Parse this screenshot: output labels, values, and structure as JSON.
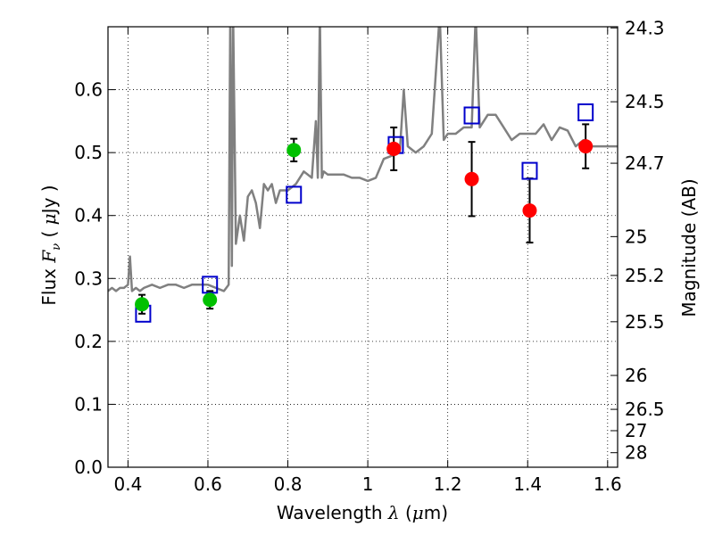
{
  "chart_data": {
    "type": "scatter",
    "xlabel": "Wavelength  λ (μm)",
    "ylabel": "Flux  F_ν  ( μJy )",
    "right_label": "Magnitude (AB)",
    "xlim": [
      0.35,
      1.625
    ],
    "ylim": [
      0.0,
      0.7
    ],
    "x_ticks": [
      "0.4",
      "0.6",
      "0.8",
      "1",
      "1.2",
      "1.4",
      "1.6"
    ],
    "y_ticks": [
      "0.0",
      "0.1",
      "0.2",
      "0.3",
      "0.4",
      "0.5",
      "0.6"
    ],
    "grid": true,
    "right_axis_ticks": [
      {
        "label": "24.3",
        "flux": 0.6982
      },
      {
        "label": "24.5",
        "flux": 0.5808
      },
      {
        "label": "24.7",
        "flux": 0.4831
      },
      {
        "label": "25",
        "flux": 0.3665
      },
      {
        "label": "25.2",
        "flux": 0.3048
      },
      {
        "label": "25.5",
        "flux": 0.2312
      },
      {
        "label": "26",
        "flux": 0.1459
      },
      {
        "label": "26.5",
        "flux": 0.092
      },
      {
        "label": "27",
        "flux": 0.0581
      },
      {
        "label": "28",
        "flux": 0.0231
      }
    ],
    "series": [
      {
        "kind": "model-spectrum",
        "color": "#808080",
        "x": [
          0.35,
          0.36,
          0.37,
          0.38,
          0.39,
          0.4,
          0.405,
          0.41,
          0.42,
          0.43,
          0.44,
          0.46,
          0.48,
          0.5,
          0.52,
          0.54,
          0.56,
          0.58,
          0.6,
          0.62,
          0.64,
          0.652,
          0.656,
          0.66,
          0.663,
          0.67,
          0.68,
          0.69,
          0.7,
          0.71,
          0.72,
          0.73,
          0.74,
          0.75,
          0.76,
          0.77,
          0.78,
          0.8,
          0.82,
          0.84,
          0.86,
          0.87,
          0.875,
          0.88,
          0.885,
          0.89,
          0.9,
          0.92,
          0.94,
          0.96,
          0.98,
          1.0,
          1.02,
          1.04,
          1.06,
          1.08,
          1.09,
          1.1,
          1.12,
          1.14,
          1.16,
          1.18,
          1.19,
          1.2,
          1.22,
          1.24,
          1.26,
          1.27,
          1.28,
          1.3,
          1.32,
          1.34,
          1.36,
          1.38,
          1.4,
          1.42,
          1.44,
          1.46,
          1.48,
          1.5,
          1.52,
          1.54,
          1.56,
          1.58,
          1.6,
          1.625
        ],
        "y": [
          0.28,
          0.285,
          0.28,
          0.285,
          0.285,
          0.29,
          0.335,
          0.28,
          0.285,
          0.28,
          0.285,
          0.29,
          0.285,
          0.29,
          0.29,
          0.285,
          0.29,
          0.29,
          0.29,
          0.285,
          0.28,
          0.29,
          0.72,
          0.32,
          0.72,
          0.355,
          0.4,
          0.36,
          0.43,
          0.44,
          0.42,
          0.38,
          0.45,
          0.44,
          0.45,
          0.42,
          0.44,
          0.44,
          0.45,
          0.47,
          0.46,
          0.55,
          0.46,
          0.72,
          0.46,
          0.47,
          0.465,
          0.465,
          0.465,
          0.46,
          0.46,
          0.455,
          0.46,
          0.49,
          0.495,
          0.5,
          0.6,
          0.51,
          0.5,
          0.51,
          0.53,
          0.72,
          0.52,
          0.53,
          0.53,
          0.54,
          0.54,
          0.72,
          0.54,
          0.56,
          0.56,
          0.54,
          0.52,
          0.53,
          0.53,
          0.53,
          0.545,
          0.52,
          0.54,
          0.535,
          0.51,
          0.52,
          0.51,
          0.51,
          0.51,
          0.51
        ]
      },
      {
        "kind": "points-green",
        "color": "#00c000",
        "x": [
          0.435,
          0.605,
          0.815
        ],
        "y": [
          0.259,
          0.266,
          0.504
        ],
        "err": [
          0.015,
          0.014,
          0.018
        ]
      },
      {
        "kind": "points-red",
        "color": "#ff0000",
        "x": [
          1.065,
          1.26,
          1.405,
          1.545
        ],
        "y": [
          0.506,
          0.458,
          0.408,
          0.51
        ],
        "err": [
          0.034,
          0.059,
          0.051,
          0.035
        ]
      },
      {
        "kind": "open-squares",
        "color": "#0000cc",
        "x": [
          0.438,
          0.605,
          0.815,
          1.07,
          1.26,
          1.405,
          1.545
        ],
        "y": [
          0.244,
          0.29,
          0.433,
          0.512,
          0.559,
          0.471,
          0.564
        ]
      }
    ]
  }
}
